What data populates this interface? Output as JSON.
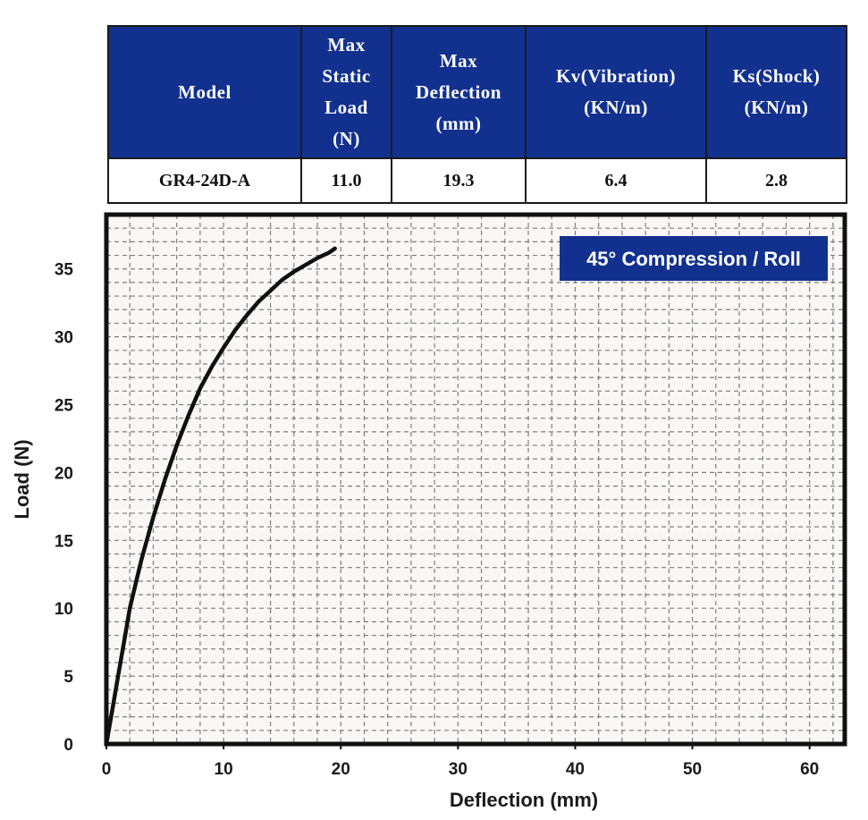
{
  "table": {
    "headers": [
      "Model",
      "Max Static Load (N)",
      "Max Deflection (mm)",
      "Kv(Vibration) (KN/m)",
      "Ks(Shock) (KN/m)"
    ],
    "header_lines": [
      [
        "Model"
      ],
      [
        "Max",
        "Static",
        "Load",
        "(N)"
      ],
      [
        "Max",
        "Deflection",
        "(mm)"
      ],
      [
        "Kv(Vibration)",
        "(KN/m)"
      ],
      [
        "Ks(Shock)",
        "(KN/m)"
      ]
    ],
    "rows": [
      [
        "GR4-24D-A",
        "11.0",
        "19.3",
        "6.4",
        "2.8"
      ]
    ],
    "header_color": "#12318f"
  },
  "chart_data": {
    "type": "line",
    "xlabel": "Deflection (mm)",
    "ylabel": "Load (N)",
    "xlim": [
      0,
      63
    ],
    "ylim": [
      0,
      39
    ],
    "xticks": [
      0,
      10,
      20,
      30,
      40,
      50,
      60
    ],
    "yticks": [
      0,
      5,
      10,
      15,
      20,
      25,
      30,
      35
    ],
    "grid": true,
    "legend_position": "top-right",
    "series": [
      {
        "name": "45° Compression / Roll",
        "color": "#111111",
        "x": [
          0,
          0.5,
          1,
          1.5,
          2,
          3,
          4,
          5,
          6,
          7,
          8,
          9,
          10,
          11,
          12,
          13,
          14,
          15,
          16,
          17,
          18,
          19,
          19.5
        ],
        "y": [
          0,
          2.5,
          5,
          7.5,
          10,
          13.6,
          16.7,
          19.5,
          22,
          24.2,
          26.2,
          27.8,
          29.2,
          30.5,
          31.6,
          32.6,
          33.4,
          34.2,
          34.8,
          35.3,
          35.8,
          36.2,
          36.5
        ]
      }
    ]
  }
}
